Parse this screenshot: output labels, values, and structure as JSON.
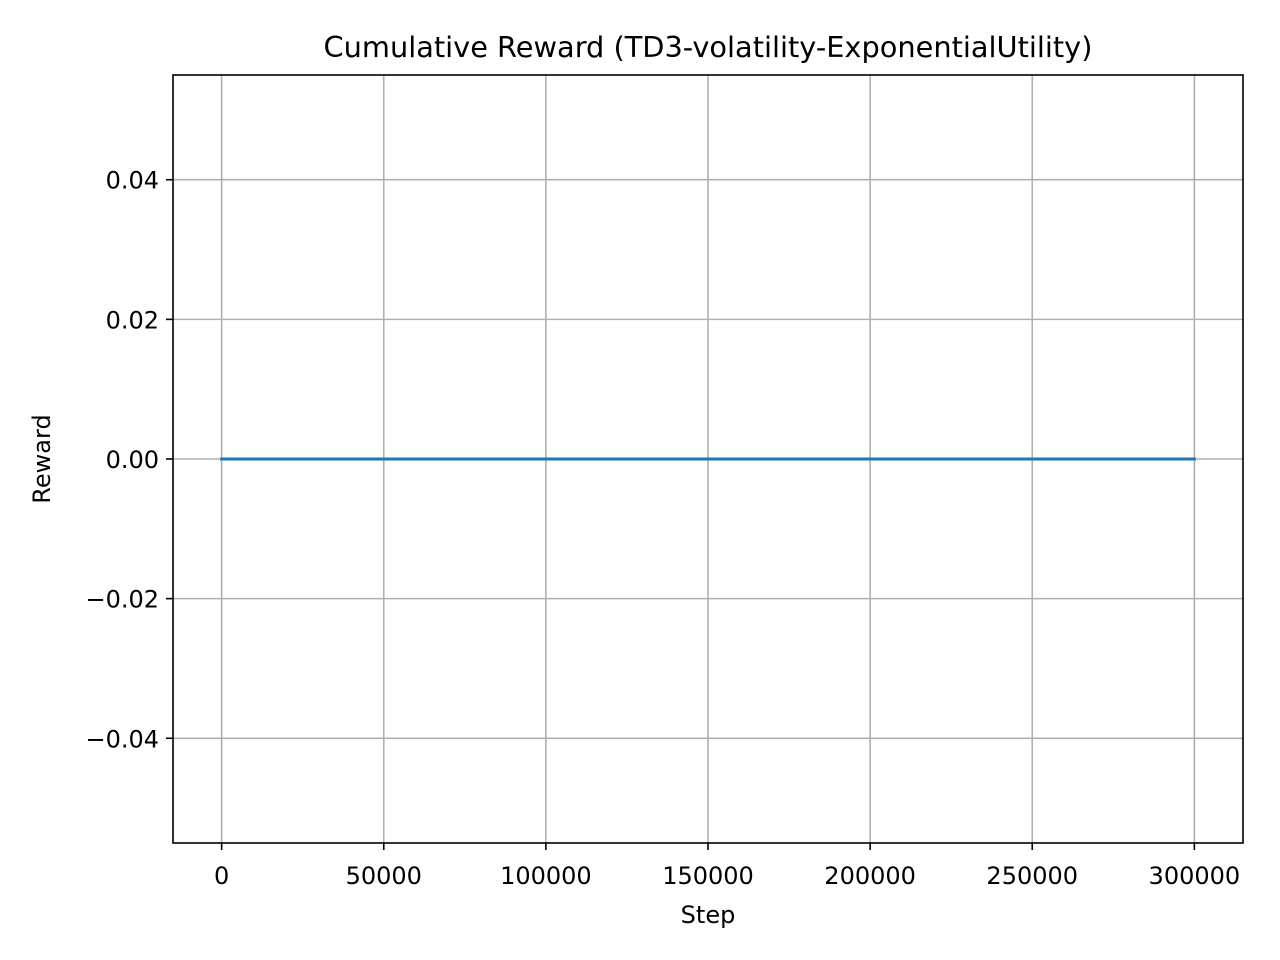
{
  "chart_data": {
    "type": "line",
    "title": "Cumulative Reward (TD3-volatility-ExponentialUtility)",
    "xlabel": "Step",
    "ylabel": "Reward",
    "xlim": [
      -15000,
      315000
    ],
    "ylim": [
      -0.055,
      0.055
    ],
    "xticks": [
      0,
      50000,
      100000,
      150000,
      200000,
      250000,
      300000
    ],
    "xtick_labels": [
      "0",
      "50000",
      "100000",
      "150000",
      "200000",
      "250000",
      "300000"
    ],
    "yticks": [
      0.04,
      0.02,
      0.0,
      -0.02,
      -0.04
    ],
    "ytick_labels": [
      "0.04",
      "0.02",
      "0.00",
      "−0.02",
      "−0.04"
    ],
    "grid": true,
    "series": [
      {
        "color": "#1f77b4",
        "x": [
          0,
          50000,
          100000,
          150000,
          200000,
          250000,
          300000
        ],
        "y": [
          0,
          0,
          0,
          0,
          0,
          0,
          0
        ]
      }
    ]
  }
}
